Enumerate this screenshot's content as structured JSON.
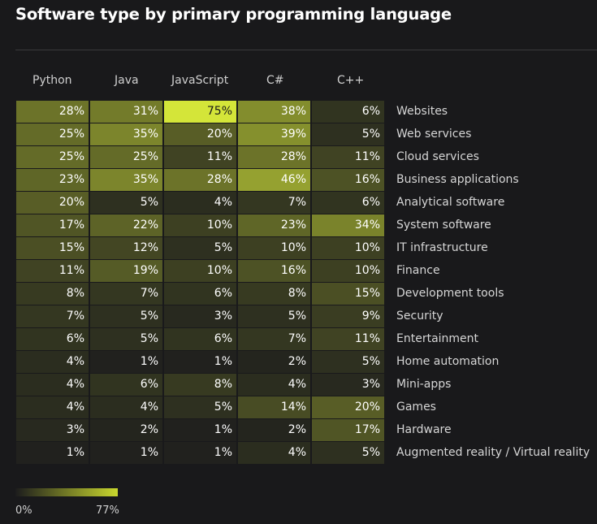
{
  "title": "Software type by primary programming language",
  "chart_data": {
    "type": "heatmap",
    "title": "Software type by primary programming language",
    "columns": [
      "Python",
      "Java",
      "JavaScript",
      "C#",
      "C++"
    ],
    "rows": [
      {
        "label": "Websites",
        "values": [
          28,
          31,
          75,
          38,
          6
        ]
      },
      {
        "label": "Web services",
        "values": [
          25,
          35,
          20,
          39,
          5
        ]
      },
      {
        "label": "Cloud services",
        "values": [
          25,
          25,
          11,
          28,
          11
        ]
      },
      {
        "label": "Business applications",
        "values": [
          23,
          35,
          28,
          46,
          16
        ]
      },
      {
        "label": "Analytical software",
        "values": [
          20,
          5,
          4,
          7,
          6
        ]
      },
      {
        "label": "System software",
        "values": [
          17,
          22,
          10,
          23,
          34
        ]
      },
      {
        "label": "IT infrastructure",
        "values": [
          15,
          12,
          5,
          10,
          10
        ]
      },
      {
        "label": "Finance",
        "values": [
          11,
          19,
          10,
          16,
          10
        ]
      },
      {
        "label": "Development tools",
        "values": [
          8,
          7,
          6,
          8,
          15
        ]
      },
      {
        "label": "Security",
        "values": [
          7,
          5,
          3,
          5,
          9
        ]
      },
      {
        "label": "Entertainment",
        "values": [
          6,
          5,
          6,
          7,
          11
        ]
      },
      {
        "label": "Home automation",
        "values": [
          4,
          1,
          1,
          2,
          5
        ]
      },
      {
        "label": "Mini-apps",
        "values": [
          4,
          6,
          8,
          4,
          3
        ]
      },
      {
        "label": "Games",
        "values": [
          4,
          4,
          5,
          14,
          20
        ]
      },
      {
        "label": "Hardware",
        "values": [
          3,
          2,
          1,
          2,
          17
        ]
      },
      {
        "label": "Augmented reality / Virtual reality",
        "values": [
          1,
          1,
          1,
          4,
          5
        ]
      }
    ],
    "value_suffix": "%",
    "scale": {
      "min": 0,
      "max": 77,
      "min_label": "0%",
      "max_label": "77%"
    },
    "colors": {
      "low": "#1c1c1d",
      "high": "#d8ea3a",
      "background": "#19191b"
    }
  }
}
